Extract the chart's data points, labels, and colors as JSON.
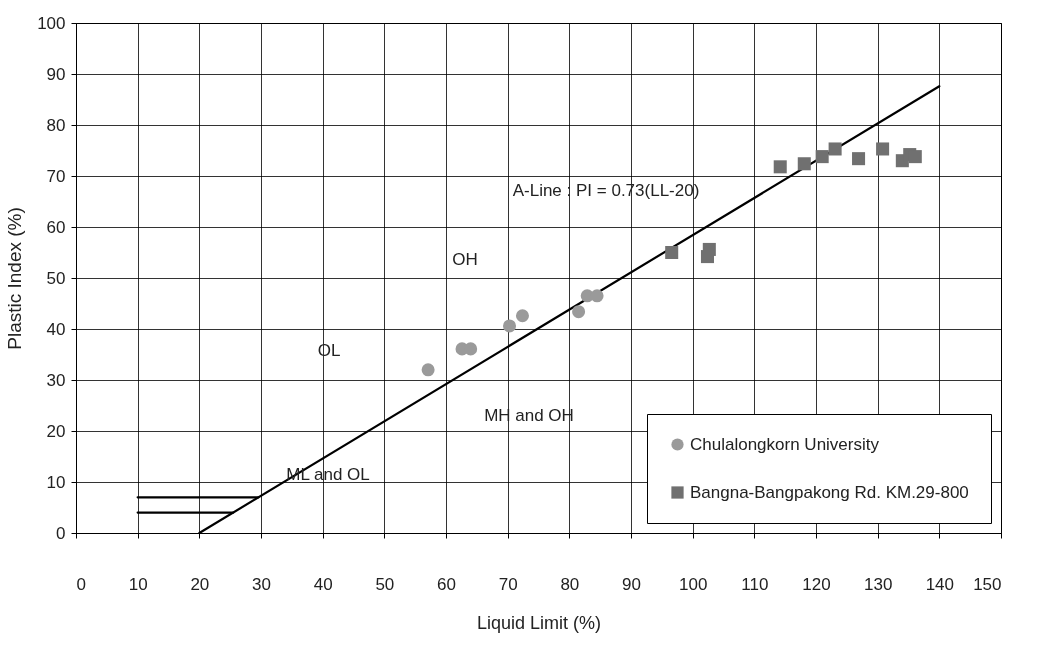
{
  "chart_data": {
    "type": "scatter",
    "xlabel": "Liquid Limit (%)",
    "ylabel": "Plastic Index (%)",
    "xlim": [
      0,
      150
    ],
    "xticks": [
      0,
      10,
      20,
      30,
      40,
      50,
      60,
      70,
      80,
      90,
      100,
      110,
      120,
      130,
      140,
      150
    ],
    "ylim": [
      0,
      100
    ],
    "yticks": [
      0,
      10,
      20,
      30,
      40,
      50,
      60,
      70,
      80,
      90,
      100
    ],
    "grid": true,
    "legend": "bottom right",
    "series": [
      {
        "name": "Chulalongkorn University",
        "type": "scatter",
        "marker": "circle",
        "color": "#9a9a9a",
        "x": [
          57.1,
          62.6,
          64.0,
          70.3,
          72.4,
          81.5,
          82.9,
          84.5
        ],
        "values": [
          32.0,
          36.1,
          36.1,
          40.6,
          42.6,
          43.4,
          46.5,
          46.5
        ]
      },
      {
        "name": "Bangna-Bangpakong Rd. KM.29-800",
        "type": "scatter",
        "marker": "square",
        "color": "#707070",
        "x": [
          96.6,
          102.7,
          102.4,
          114.2,
          118.1,
          121.0,
          123.1,
          126.9,
          130.8,
          134.0,
          135.2,
          136.1
        ],
        "values": [
          55.0,
          55.6,
          54.2,
          71.8,
          72.4,
          73.8,
          75.3,
          73.4,
          75.3,
          73.0,
          74.2,
          73.8
        ]
      },
      {
        "type": "line",
        "color": "#000000",
        "x": [
          20,
          140
        ],
        "values": [
          0,
          87.6
        ]
      },
      {
        "type": "line",
        "color": "#000000",
        "x": [
          10,
          29.6
        ],
        "values": [
          7,
          7
        ]
      },
      {
        "type": "line",
        "color": "#000000",
        "x": [
          10,
          25.5
        ],
        "values": [
          4,
          4
        ]
      }
    ],
    "annotations": [
      "A-Line : PI = 0.73(LL-20)",
      "OH",
      "OL",
      "MH and OH",
      "ML and OL"
    ]
  }
}
